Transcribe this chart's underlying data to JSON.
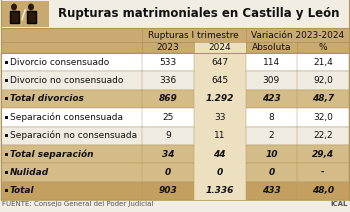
{
  "title": "Rupturas matrimoniales en Castilla y León",
  "col_headers": [
    "Rupturas I trimestre",
    "Variación 2023-2024"
  ],
  "sub_headers": [
    "2023",
    "2024",
    "Absoluta",
    "%"
  ],
  "rows": [
    {
      "label": "Divorcio consensuado",
      "bold": false,
      "values": [
        "533",
        "647",
        "114",
        "21,4"
      ],
      "bg": "#ffffff"
    },
    {
      "label": "Divorcio no consensuado",
      "bold": false,
      "values": [
        "336",
        "645",
        "309",
        "92,0"
      ],
      "bg": "#f0ebe0"
    },
    {
      "label": "Total divorcios",
      "bold": true,
      "values": [
        "869",
        "1.292",
        "423",
        "48,7"
      ],
      "bg": "#d4bc88"
    },
    {
      "label": "Separación consensuada",
      "bold": false,
      "values": [
        "25",
        "33",
        "8",
        "32,0"
      ],
      "bg": "#ffffff"
    },
    {
      "label": "Separación no consensuada",
      "bold": false,
      "values": [
        "9",
        "11",
        "2",
        "22,2"
      ],
      "bg": "#f0ebe0"
    },
    {
      "label": "Total separación",
      "bold": true,
      "values": [
        "34",
        "44",
        "10",
        "29,4"
      ],
      "bg": "#d4bc88"
    },
    {
      "label": "Nulidad",
      "bold": true,
      "values": [
        "0",
        "0",
        "0",
        "-"
      ],
      "bg": "#d4bc88"
    },
    {
      "label": "Total",
      "bold": true,
      "values": [
        "903",
        "1.336",
        "433",
        "48,0"
      ],
      "bg": "#c4a060"
    }
  ],
  "footer": "FUENTE: Consejo General del Poder Judicial",
  "footer_right": "ICAL",
  "bg_color": "#f2ede3",
  "header_bg": "#c9aa72",
  "col2024_bg": "#ede0c0",
  "border_color": "#b0955a",
  "title_fontsize": 8.5,
  "body_fontsize": 6.5,
  "header_fontsize": 6.5,
  "footer_fontsize": 5.0
}
